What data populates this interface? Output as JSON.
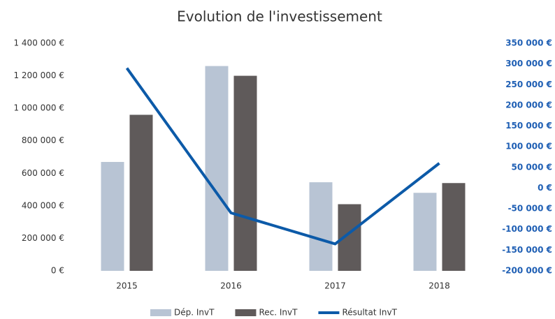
{
  "chart_data": {
    "type": "bar_line",
    "title": "Evolution de l'investissement",
    "categories": [
      "2015",
      "2016",
      "2017",
      "2018"
    ],
    "series": [
      {
        "name": "Dép. InvT",
        "color": "#b8c4d4",
        "type": "bar",
        "values": [
          670000,
          1260000,
          545000,
          480000
        ]
      },
      {
        "name": "Rec. InvT",
        "color": "#5f5a5a",
        "type": "bar",
        "values": [
          960000,
          1200000,
          410000,
          540000
        ]
      },
      {
        "name": "Résultat InvT",
        "color": "#0c5aa8",
        "type": "line",
        "axis": "y2",
        "values": [
          290000,
          -60000,
          -135000,
          60000
        ]
      }
    ],
    "ylim": [
      0,
      1400000
    ],
    "yticks": [
      {
        "value": 0,
        "label": "0 €"
      },
      {
        "value": 200000,
        "label": "200 000 €"
      },
      {
        "value": 400000,
        "label": "400 000 €"
      },
      {
        "value": 600000,
        "label": "600 000 €"
      },
      {
        "value": 800000,
        "label": "800 000 €"
      },
      {
        "value": 1000000,
        "label": "1 000 000 €"
      },
      {
        "value": 1200000,
        "label": "1 200 000 €"
      },
      {
        "value": 1400000,
        "label": "1 400 000 €"
      }
    ],
    "y2lim": [
      -200000,
      350000
    ],
    "y2ticks": [
      {
        "value": -200000,
        "label": "-200 000 €"
      },
      {
        "value": -150000,
        "label": "-150 000 €"
      },
      {
        "value": -100000,
        "label": "-100 000 €"
      },
      {
        "value": -50000,
        "label": "-50 000 €"
      },
      {
        "value": 0,
        "label": "0 €"
      },
      {
        "value": 50000,
        "label": "50 000 €"
      },
      {
        "value": 100000,
        "label": "100 000 €"
      },
      {
        "value": 150000,
        "label": "150 000 €"
      },
      {
        "value": 200000,
        "label": "200 000 €"
      },
      {
        "value": 250000,
        "label": "250 000 €"
      },
      {
        "value": 300000,
        "label": "300 000 €"
      },
      {
        "value": 350000,
        "label": "350 000 €"
      }
    ],
    "legend": "bottom"
  }
}
